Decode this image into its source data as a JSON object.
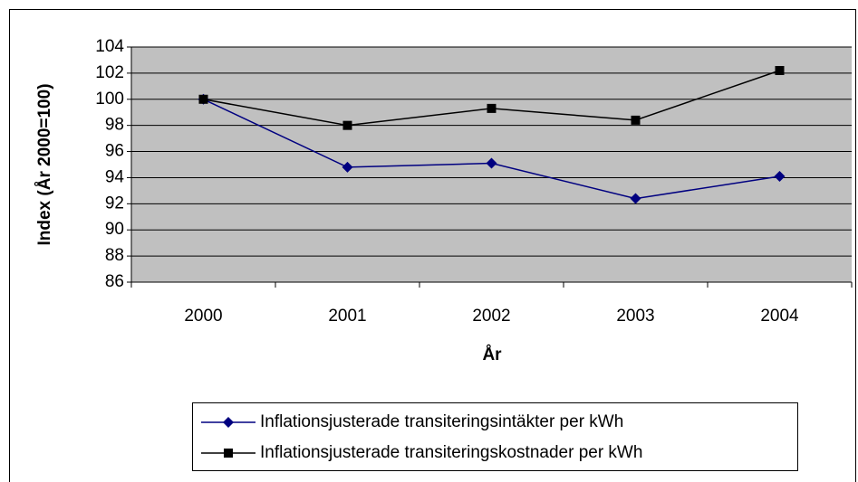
{
  "chart_data": {
    "type": "line",
    "x_label": "År",
    "y_label": "Index (År 2000=100)",
    "categories": [
      "2000",
      "2001",
      "2002",
      "2003",
      "2004"
    ],
    "series": [
      {
        "name": "Inflationsjusterade transiteringsintäkter per kWh",
        "color": "#000080",
        "marker": "diamond",
        "values": [
          100,
          94.8,
          95.1,
          92.4,
          94.1
        ]
      },
      {
        "name": "Inflationsjusterade transiteringskostnader per kWh",
        "color": "#000000",
        "marker": "square",
        "values": [
          100,
          98.0,
          99.3,
          98.4,
          102.2
        ]
      }
    ],
    "ylim": [
      86,
      104
    ],
    "yticks": [
      86,
      88,
      90,
      92,
      94,
      96,
      98,
      100,
      102,
      104
    ],
    "grid": true,
    "legend": "bottom"
  }
}
